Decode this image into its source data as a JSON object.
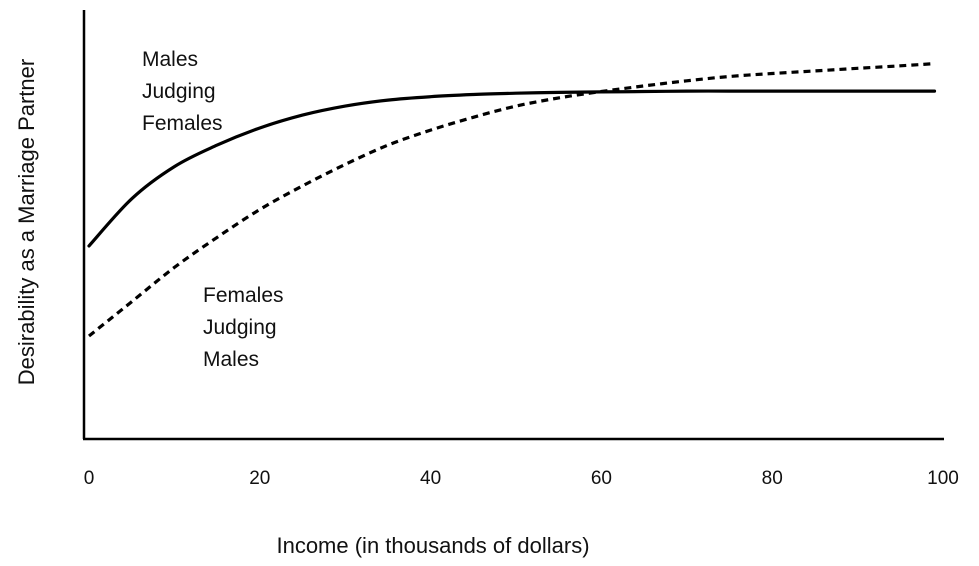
{
  "chart_data": {
    "type": "line",
    "title": "",
    "xlabel": "Income (in thousands of dollars)",
    "ylabel": "Desirability as a Marriage Partner",
    "xlim": [
      0,
      100
    ],
    "ylim": [
      0,
      100
    ],
    "x_ticks": [
      0,
      20,
      40,
      60,
      80,
      100
    ],
    "y_ticks": [],
    "grid": false,
    "legend": "none",
    "series": [
      {
        "name": "Males Judging Females",
        "style": "solid",
        "color": "#000000",
        "x": [
          0,
          5,
          10,
          15,
          20,
          25,
          30,
          35,
          40,
          45,
          50,
          55,
          60,
          65,
          70,
          75,
          80,
          85,
          90,
          95,
          99
        ],
        "y": [
          45,
          56,
          63.5,
          68.5,
          72.5,
          75.5,
          77.6,
          79,
          79.8,
          80.3,
          80.6,
          80.8,
          80.9,
          81,
          81.1,
          81.1,
          81.1,
          81.1,
          81.1,
          81.1,
          81.1
        ]
      },
      {
        "name": "Females Judging Males",
        "style": "dashed",
        "color": "#000000",
        "x": [
          0,
          5,
          10,
          15,
          20,
          25,
          30,
          35,
          40,
          45,
          50,
          55,
          60,
          65,
          70,
          75,
          80,
          85,
          90,
          95,
          99
        ],
        "y": [
          24,
          32,
          40,
          47,
          53.5,
          59,
          64,
          68.5,
          72,
          75,
          77.6,
          79.5,
          81,
          82.3,
          83.5,
          84.5,
          85.2,
          85.8,
          86.4,
          87,
          87.5
        ]
      }
    ],
    "annotations": [
      {
        "series": 0,
        "lines": [
          "Males",
          "Judging",
          "Females"
        ]
      },
      {
        "series": 1,
        "lines": [
          "Females",
          "Judging",
          "Males"
        ]
      }
    ]
  }
}
